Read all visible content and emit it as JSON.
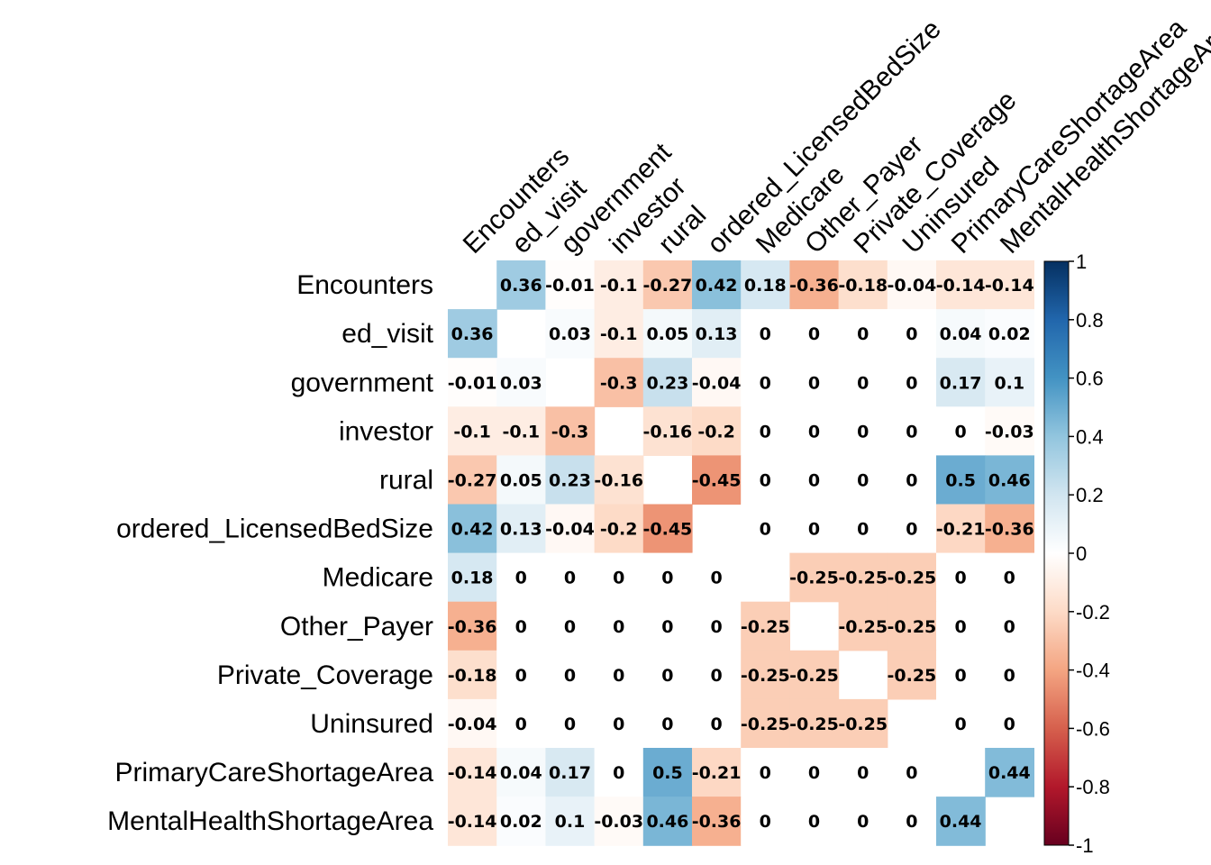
{
  "chart_data": {
    "type": "heatmap",
    "variables": [
      "Encounters",
      "ed_visit",
      "government",
      "investor",
      "rural",
      "ordered_LicensedBedSize",
      "Medicare",
      "Other_Payer",
      "Private_Coverage",
      "Uninsured",
      "PrimaryCareShortageArea",
      "MentalHealthShortageArea"
    ],
    "matrix": [
      [
        null,
        0.36,
        -0.01,
        -0.1,
        -0.27,
        0.42,
        0.18,
        -0.36,
        -0.18,
        -0.04,
        -0.14,
        -0.14
      ],
      [
        0.36,
        null,
        0.03,
        -0.1,
        0.05,
        0.13,
        0,
        0,
        0,
        0,
        0.04,
        0.02
      ],
      [
        -0.01,
        0.03,
        null,
        -0.3,
        0.23,
        -0.04,
        0,
        0,
        0,
        0,
        0.17,
        0.1
      ],
      [
        -0.1,
        -0.1,
        -0.3,
        null,
        -0.16,
        -0.2,
        0,
        0,
        0,
        0,
        0,
        -0.03
      ],
      [
        -0.27,
        0.05,
        0.23,
        -0.16,
        null,
        -0.45,
        0,
        0,
        0,
        0,
        0.5,
        0.46
      ],
      [
        0.42,
        0.13,
        -0.04,
        -0.2,
        -0.45,
        null,
        0,
        0,
        0,
        0,
        -0.21,
        -0.36
      ],
      [
        0.18,
        0,
        0,
        0,
        0,
        0,
        null,
        -0.25,
        -0.25,
        -0.25,
        0,
        0
      ],
      [
        -0.36,
        0,
        0,
        0,
        0,
        0,
        -0.25,
        null,
        -0.25,
        -0.25,
        0,
        0
      ],
      [
        -0.18,
        0,
        0,
        0,
        0,
        0,
        -0.25,
        -0.25,
        null,
        -0.25,
        0,
        0
      ],
      [
        -0.04,
        0,
        0,
        0,
        0,
        0,
        -0.25,
        -0.25,
        -0.25,
        null,
        0,
        0
      ],
      [
        -0.14,
        0.04,
        0.17,
        0,
        0.5,
        -0.21,
        0,
        0,
        0,
        0,
        null,
        0.44
      ],
      [
        -0.14,
        0.02,
        0.1,
        -0.03,
        0.46,
        -0.36,
        0,
        0,
        0,
        0,
        0.44,
        null
      ]
    ],
    "colorbar": {
      "range": [
        -1,
        1
      ],
      "ticks": [
        "1",
        "0.8",
        "0.6",
        "0.4",
        "0.2",
        "0",
        "-0.2",
        "-0.4",
        "-0.6",
        "-0.8",
        "-1"
      ],
      "colors": [
        "#67001F",
        "#B2182B",
        "#D6604D",
        "#F4A582",
        "#FDDBC7",
        "#FFFFFF",
        "#D1E5F0",
        "#92C5DE",
        "#4393C3",
        "#2166AC",
        "#053061"
      ]
    },
    "title": "",
    "xlabel": "",
    "ylabel": "",
    "grid": false,
    "diagonal": "blank"
  }
}
